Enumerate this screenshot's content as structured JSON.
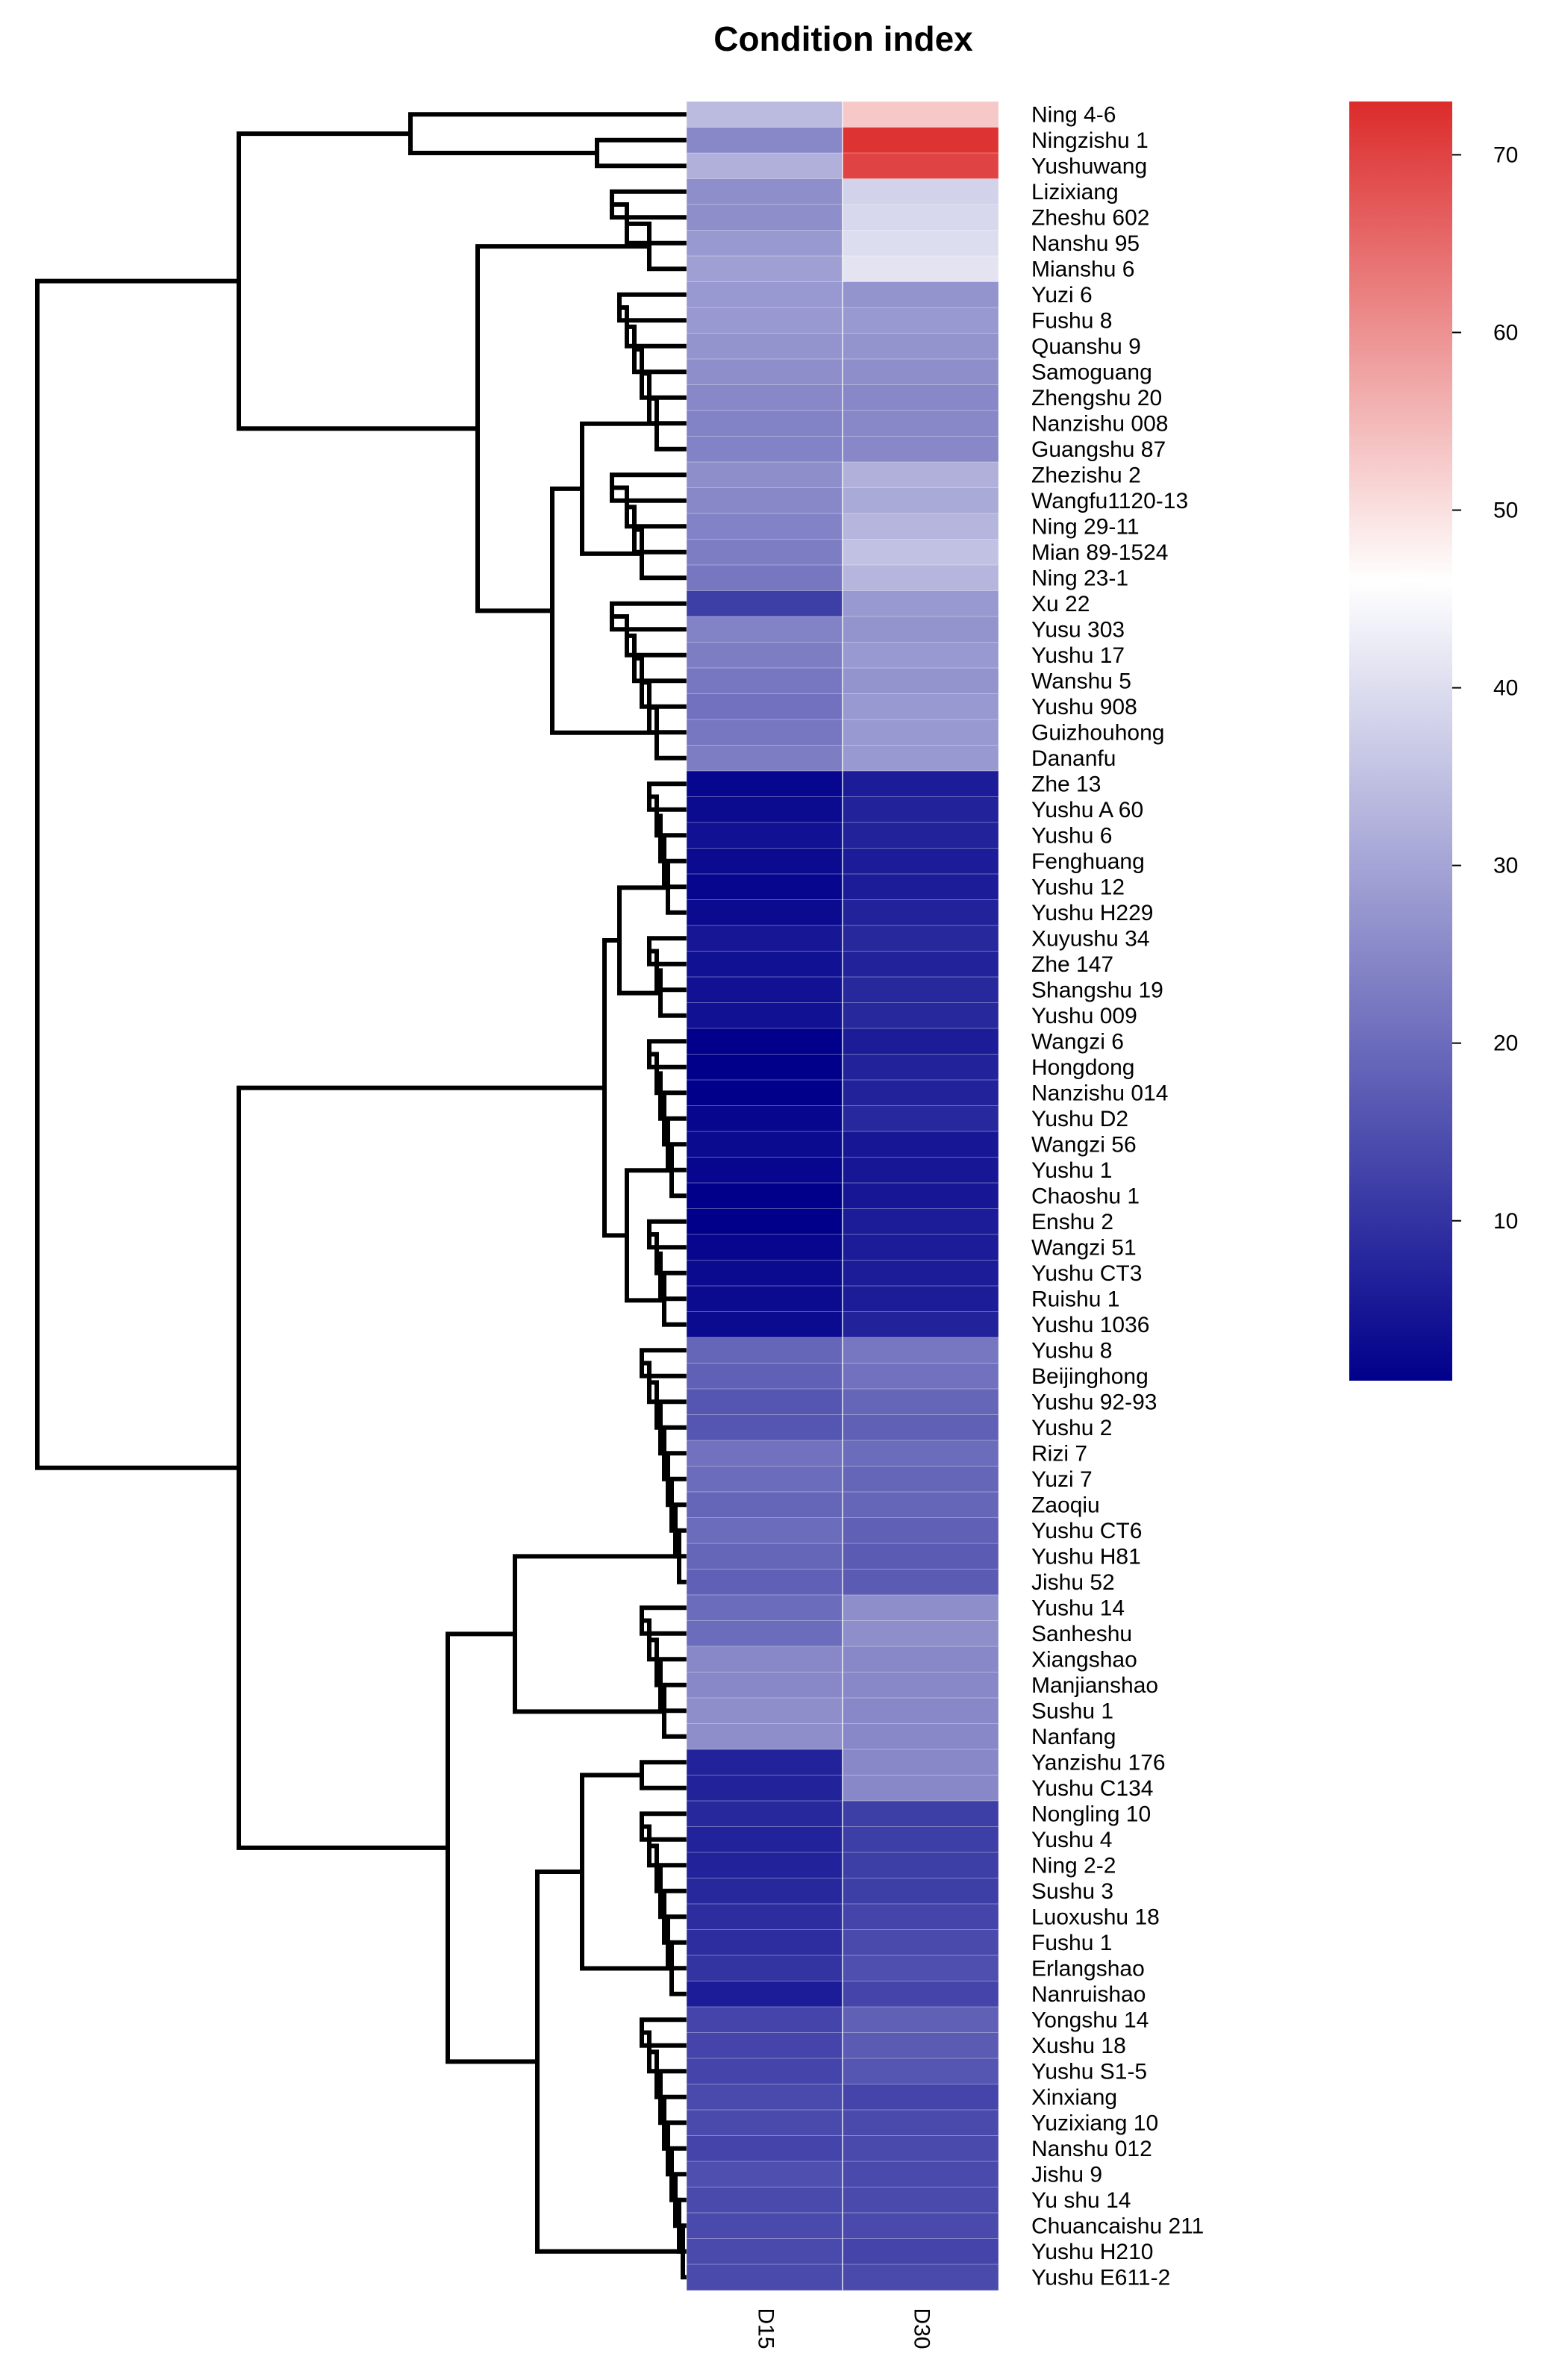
{
  "chart_data": {
    "type": "heatmap",
    "title": "Condition index",
    "columns": [
      "D15",
      "D30"
    ],
    "rows": [
      "Ning 4-6",
      "Ningzishu 1",
      "Yushuwang",
      "Lizixiang",
      "Zheshu 602",
      "Nanshu 95",
      "Mianshu 6",
      "Yuzi 6",
      "Fushu 8",
      "Quanshu 9",
      "Samoguang",
      "Zhengshu 20",
      "Nanzishu 008",
      "Guangshu 87",
      "Zhezishu 2",
      "Wangfu1120-13",
      "Ning 29-11",
      "Mian 89-1524",
      "Ning 23-1",
      "Xu 22",
      "Yusu 303",
      "Yushu 17",
      "Wanshu 5",
      "Yushu 908",
      "Guizhouhong",
      "Dananfu",
      "Zhe 13",
      "Yushu A 60",
      "Yushu 6",
      "Fenghuang",
      "Yushu 12",
      "Yushu H229",
      "Xuyushu 34",
      "Zhe 147",
      "Shangshu 19",
      "Yushu 009",
      "Wangzi 6",
      "Hongdong",
      "Nanzishu 014",
      "Yushu D2",
      "Wangzi 56",
      "Yushu 1",
      "Chaoshu 1",
      "Enshu 2",
      "Wangzi 51",
      "Yushu CT3",
      "Ruishu 1",
      "Yushu 1036",
      "Yushu 8",
      "Beijinghong",
      "Yushu 92-93",
      "Yushu 2",
      "Rizi 7",
      "Yuzi 7",
      "Zaoqiu",
      "Yushu CT6",
      "Yushu H81",
      "Jishu 52",
      "Yushu 14",
      "Sanheshu",
      "Xiangshao",
      "Manjianshao",
      "Sushu 1",
      "Nanfang",
      "Yanzishu 176",
      "Yushu C134",
      "Nongling 10",
      "Yushu 4",
      "Ning 2-2",
      "Sushu 3",
      "Luoxushu 18",
      "Fushu 1",
      "Erlangshao",
      "Nanruishao",
      "Yongshu 14",
      "Xushu 18",
      "Yushu S1-5",
      "Xinxiang",
      "Yuzixiang 10",
      "Nanshu 012",
      "Jishu 9",
      "Yu shu 14",
      "Chuancaishu 211",
      "Yushu H210",
      "Yushu E611-2"
    ],
    "values": [
      [
        34,
        53
      ],
      [
        25,
        72
      ],
      [
        32,
        70
      ],
      [
        26,
        38
      ],
      [
        26,
        39
      ],
      [
        28,
        40
      ],
      [
        29,
        41
      ],
      [
        28,
        27
      ],
      [
        28,
        28
      ],
      [
        27,
        27
      ],
      [
        26,
        26
      ],
      [
        25,
        25
      ],
      [
        24,
        25
      ],
      [
        24,
        25
      ],
      [
        26,
        32
      ],
      [
        25,
        31
      ],
      [
        24,
        33
      ],
      [
        23,
        35
      ],
      [
        22,
        33
      ],
      [
        12,
        28
      ],
      [
        24,
        27
      ],
      [
        23,
        28
      ],
      [
        22,
        27
      ],
      [
        21,
        28
      ],
      [
        22,
        28
      ],
      [
        23,
        28
      ],
      [
        2,
        6
      ],
      [
        3,
        7
      ],
      [
        4,
        7
      ],
      [
        3,
        6
      ],
      [
        2,
        6
      ],
      [
        3,
        7
      ],
      [
        5,
        8
      ],
      [
        4,
        7
      ],
      [
        4,
        8
      ],
      [
        4,
        8
      ],
      [
        1,
        6
      ],
      [
        1,
        7
      ],
      [
        1,
        7
      ],
      [
        2,
        8
      ],
      [
        3,
        5
      ],
      [
        2,
        5
      ],
      [
        1,
        5
      ],
      [
        1,
        6
      ],
      [
        2,
        6
      ],
      [
        3,
        6
      ],
      [
        3,
        6
      ],
      [
        3,
        7
      ],
      [
        19,
        22
      ],
      [
        18,
        21
      ],
      [
        16,
        19
      ],
      [
        16,
        18
      ],
      [
        21,
        20
      ],
      [
        20,
        19
      ],
      [
        19,
        19
      ],
      [
        20,
        18
      ],
      [
        19,
        17
      ],
      [
        18,
        17
      ],
      [
        20,
        26
      ],
      [
        20,
        26
      ],
      [
        25,
        25
      ],
      [
        25,
        25
      ],
      [
        26,
        25
      ],
      [
        26,
        25
      ],
      [
        7,
        25
      ],
      [
        7,
        25
      ],
      [
        8,
        12
      ],
      [
        7,
        12
      ],
      [
        7,
        12
      ],
      [
        8,
        12
      ],
      [
        9,
        13
      ],
      [
        9,
        14
      ],
      [
        10,
        15
      ],
      [
        6,
        13
      ],
      [
        13,
        18
      ],
      [
        13,
        17
      ],
      [
        13,
        16
      ],
      [
        14,
        13
      ],
      [
        14,
        14
      ],
      [
        13,
        14
      ],
      [
        15,
        14
      ],
      [
        14,
        14
      ],
      [
        14,
        14
      ],
      [
        14,
        13
      ],
      [
        14,
        14
      ]
    ],
    "colorbar": {
      "ticks": [
        10,
        20,
        30,
        40,
        50,
        60,
        70
      ],
      "range": [
        1,
        73
      ],
      "colors": {
        "low": "#00008b",
        "mid": "#ffffff",
        "high": "#dc2b2b"
      },
      "mid_value": 46
    },
    "row_dendrogram": "left"
  }
}
